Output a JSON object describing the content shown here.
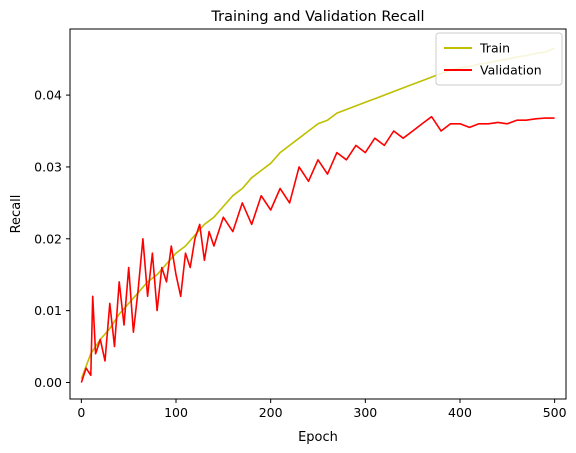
{
  "chart_data": {
    "type": "line",
    "title": "Training and Validation Recall",
    "xlabel": "Epoch",
    "ylabel": "Recall",
    "xlim": [
      -12,
      512
    ],
    "ylim": [
      -0.0023,
      0.0492
    ],
    "xticks": [
      0,
      100,
      200,
      300,
      400,
      500
    ],
    "xtick_labels": [
      "0",
      "100",
      "200",
      "300",
      "400",
      "500"
    ],
    "yticks": [
      0.0,
      0.01,
      0.02,
      0.03,
      0.04
    ],
    "ytick_labels": [
      "0.00",
      "0.01",
      "0.02",
      "0.03",
      "0.04"
    ],
    "grid": false,
    "legend_position": "top-right",
    "series": [
      {
        "name": "Train",
        "color": "#bfbf00",
        "x": [
          0,
          10,
          20,
          30,
          40,
          50,
          60,
          70,
          80,
          90,
          100,
          110,
          120,
          130,
          140,
          150,
          160,
          170,
          180,
          190,
          200,
          210,
          220,
          230,
          240,
          250,
          260,
          270,
          280,
          290,
          300,
          310,
          320,
          330,
          340,
          350,
          360,
          370,
          380,
          390,
          400,
          410,
          420,
          430,
          440,
          450,
          460,
          470,
          480,
          490,
          500
        ],
        "y": [
          0.0005,
          0.004,
          0.006,
          0.0075,
          0.0095,
          0.011,
          0.0125,
          0.014,
          0.015,
          0.0165,
          0.018,
          0.019,
          0.0205,
          0.022,
          0.023,
          0.0245,
          0.026,
          0.027,
          0.0285,
          0.0295,
          0.0305,
          0.032,
          0.033,
          0.034,
          0.035,
          0.036,
          0.0365,
          0.0375,
          0.038,
          0.0385,
          0.039,
          0.0395,
          0.04,
          0.0405,
          0.041,
          0.0415,
          0.042,
          0.0425,
          0.043,
          0.0435,
          0.0438,
          0.044,
          0.0443,
          0.0445,
          0.0448,
          0.045,
          0.0453,
          0.0455,
          0.0458,
          0.046,
          0.0465
        ]
      },
      {
        "name": "Validation",
        "color": "#ff0000",
        "x": [
          0,
          5,
          10,
          12,
          15,
          20,
          25,
          30,
          35,
          40,
          45,
          50,
          55,
          60,
          65,
          70,
          75,
          80,
          85,
          90,
          95,
          100,
          105,
          110,
          115,
          120,
          125,
          130,
          135,
          140,
          150,
          160,
          170,
          180,
          190,
          200,
          210,
          220,
          230,
          240,
          250,
          260,
          270,
          280,
          290,
          300,
          310,
          320,
          330,
          340,
          350,
          360,
          370,
          380,
          390,
          400,
          410,
          420,
          430,
          440,
          450,
          460,
          470,
          480,
          490,
          500
        ],
        "y": [
          0.0,
          0.002,
          0.001,
          0.012,
          0.004,
          0.006,
          0.003,
          0.011,
          0.005,
          0.014,
          0.008,
          0.016,
          0.007,
          0.013,
          0.02,
          0.012,
          0.018,
          0.01,
          0.016,
          0.014,
          0.019,
          0.015,
          0.012,
          0.018,
          0.016,
          0.02,
          0.022,
          0.017,
          0.021,
          0.019,
          0.023,
          0.021,
          0.025,
          0.022,
          0.026,
          0.024,
          0.027,
          0.025,
          0.03,
          0.028,
          0.031,
          0.029,
          0.032,
          0.031,
          0.033,
          0.032,
          0.034,
          0.033,
          0.035,
          0.034,
          0.035,
          0.036,
          0.037,
          0.035,
          0.036,
          0.036,
          0.0355,
          0.036,
          0.036,
          0.0362,
          0.036,
          0.0365,
          0.0365,
          0.0367,
          0.0368,
          0.0368
        ]
      }
    ]
  }
}
